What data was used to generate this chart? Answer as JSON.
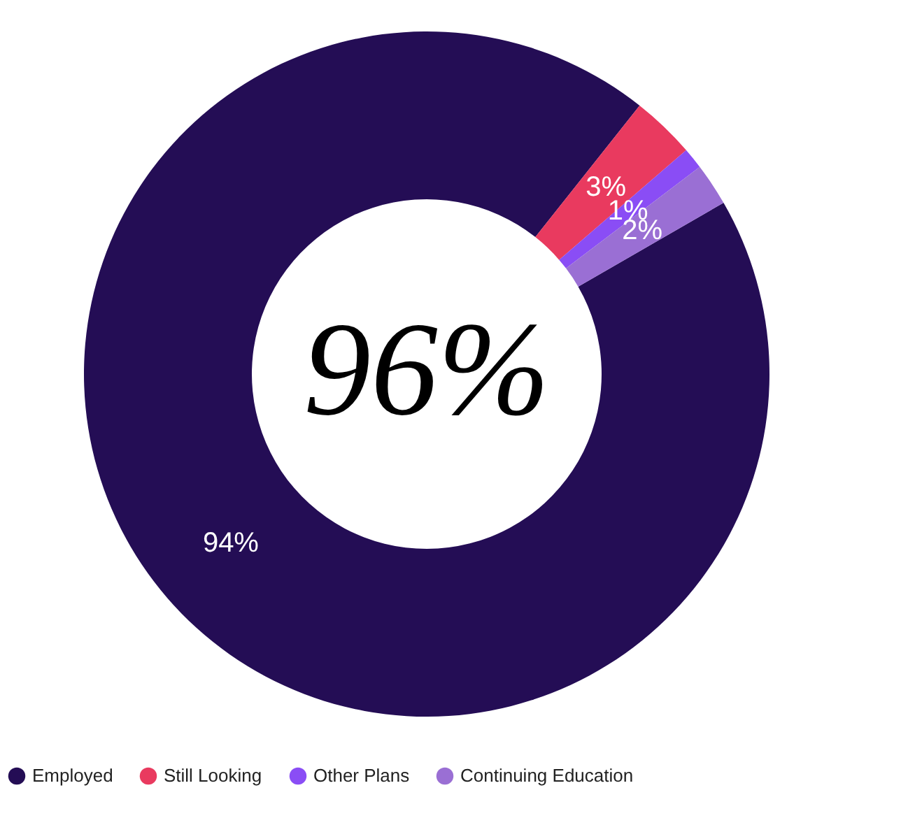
{
  "chart_data": {
    "type": "donut",
    "categories": [
      "Employed",
      "Still Looking",
      "Other Plans",
      "Continuing Education"
    ],
    "values": [
      94,
      3,
      1,
      2
    ],
    "colors": [
      "#240d55",
      "#e93a5f",
      "#8a4df5",
      "#9a6fd4"
    ],
    "value_labels": [
      "94%",
      "3%",
      "1%",
      "2%"
    ],
    "annotations": [
      "96%"
    ],
    "legend": "bottom"
  }
}
